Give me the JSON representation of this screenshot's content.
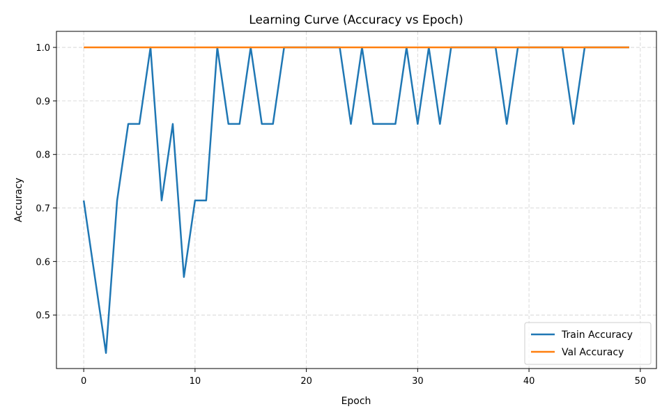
{
  "chart_data": {
    "type": "line",
    "title": "Learning Curve (Accuracy vs Epoch)",
    "xlabel": "Epoch",
    "ylabel": "Accuracy",
    "xlim": [
      -2.45,
      51.45
    ],
    "ylim": [
      0.4,
      1.03
    ],
    "xticks": [
      0,
      10,
      20,
      30,
      40,
      50
    ],
    "yticks": [
      0.5,
      0.6,
      0.7,
      0.8,
      0.9,
      1.0
    ],
    "xtick_labels": [
      "0",
      "10",
      "20",
      "30",
      "40",
      "50"
    ],
    "ytick_labels": [
      "0.5",
      "0.6",
      "0.7",
      "0.8",
      "0.9",
      "1.0"
    ],
    "grid": true,
    "legend_position": "bottom-right",
    "x": [
      0,
      1,
      2,
      3,
      4,
      5,
      6,
      7,
      8,
      9,
      10,
      11,
      12,
      13,
      14,
      15,
      16,
      17,
      18,
      19,
      20,
      21,
      22,
      23,
      24,
      25,
      26,
      27,
      28,
      29,
      30,
      31,
      32,
      33,
      34,
      35,
      36,
      37,
      38,
      39,
      40,
      41,
      42,
      43,
      44,
      45,
      46,
      47,
      48,
      49
    ],
    "series": [
      {
        "name": "Train Accuracy",
        "color": "#1f77b4",
        "values": [
          0.714,
          0.571,
          0.429,
          0.714,
          0.857,
          0.857,
          1.0,
          0.714,
          0.857,
          0.571,
          0.714,
          0.714,
          1.0,
          0.857,
          0.857,
          1.0,
          0.857,
          0.857,
          1.0,
          1.0,
          1.0,
          1.0,
          1.0,
          1.0,
          0.857,
          1.0,
          0.857,
          0.857,
          0.857,
          1.0,
          0.857,
          1.0,
          0.857,
          1.0,
          1.0,
          1.0,
          1.0,
          1.0,
          0.857,
          1.0,
          1.0,
          1.0,
          1.0,
          1.0,
          0.857,
          1.0,
          1.0,
          1.0,
          1.0,
          1.0
        ]
      },
      {
        "name": "Val Accuracy",
        "color": "#ff7f0e",
        "values": [
          1.0,
          1.0,
          1.0,
          1.0,
          1.0,
          1.0,
          1.0,
          1.0,
          1.0,
          1.0,
          1.0,
          1.0,
          1.0,
          1.0,
          1.0,
          1.0,
          1.0,
          1.0,
          1.0,
          1.0,
          1.0,
          1.0,
          1.0,
          1.0,
          1.0,
          1.0,
          1.0,
          1.0,
          1.0,
          1.0,
          1.0,
          1.0,
          1.0,
          1.0,
          1.0,
          1.0,
          1.0,
          1.0,
          1.0,
          1.0,
          1.0,
          1.0,
          1.0,
          1.0,
          1.0,
          1.0,
          1.0,
          1.0,
          1.0,
          1.0
        ]
      }
    ]
  }
}
